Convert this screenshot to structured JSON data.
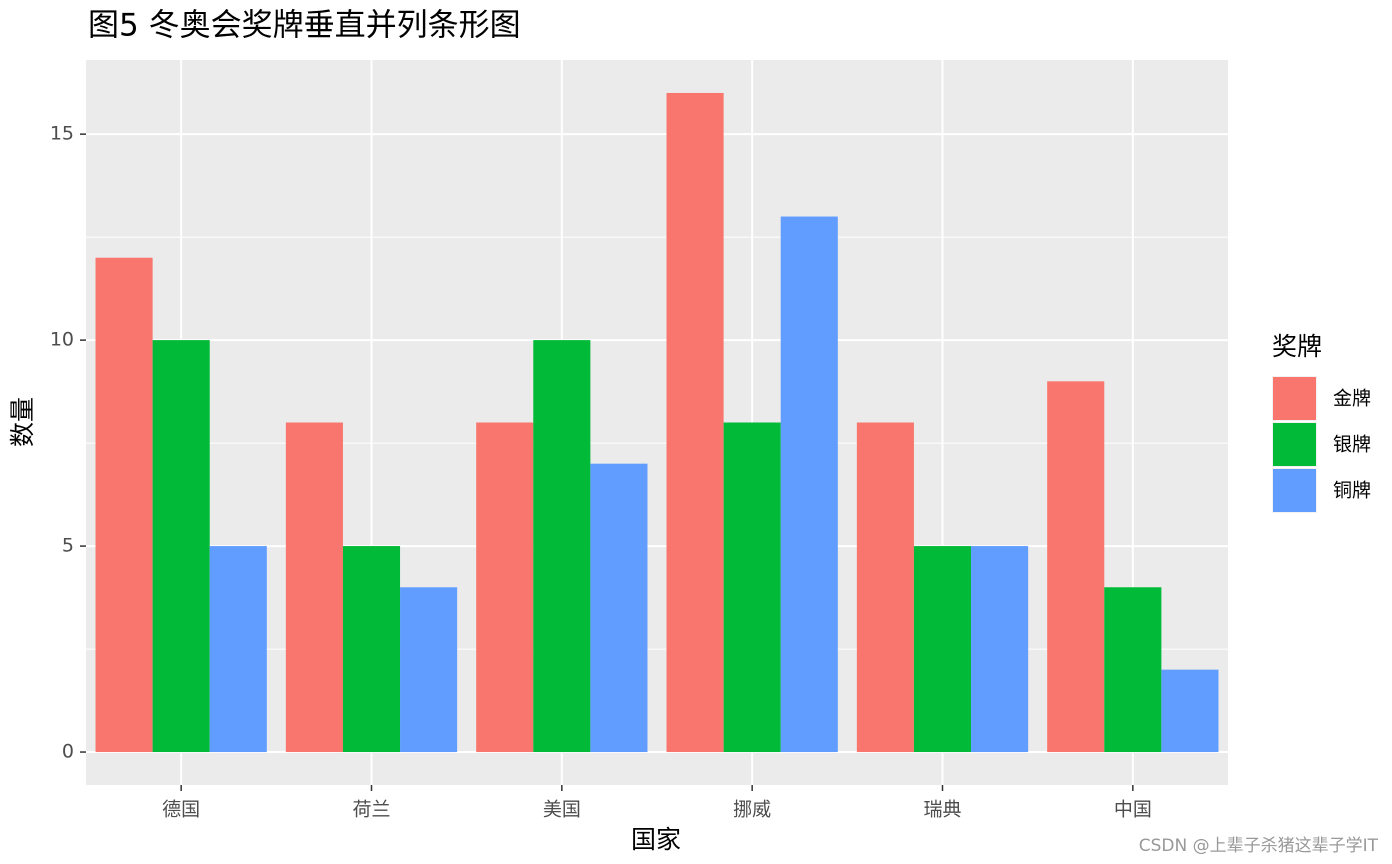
{
  "chart_data": {
    "type": "bar",
    "title": "图5 冬奥会奖牌垂直并列条形图",
    "x_label": "国家",
    "y_label": "数量",
    "categories": [
      "德国",
      "荷兰",
      "美国",
      "挪威",
      "瑞典",
      "中国"
    ],
    "series": [
      {
        "name": "金牌",
        "color": "#f8766d",
        "values": [
          12,
          8,
          8,
          16,
          8,
          9
        ]
      },
      {
        "name": "银牌",
        "color": "#00ba38",
        "values": [
          10,
          5,
          10,
          8,
          5,
          4
        ]
      },
      {
        "name": "铜牌",
        "color": "#619cff",
        "values": [
          5,
          4,
          7,
          13,
          5,
          2
        ]
      }
    ],
    "legend_title": "奖牌",
    "legend": "right",
    "ylim": [
      -0.8,
      16.8
    ],
    "yticks": [
      0,
      5,
      10,
      15
    ],
    "y_minor_ticks": [
      2.5,
      7.5,
      12.5
    ],
    "grid": true,
    "watermark": "CSDN @上辈子杀猪这辈子学IT"
  }
}
